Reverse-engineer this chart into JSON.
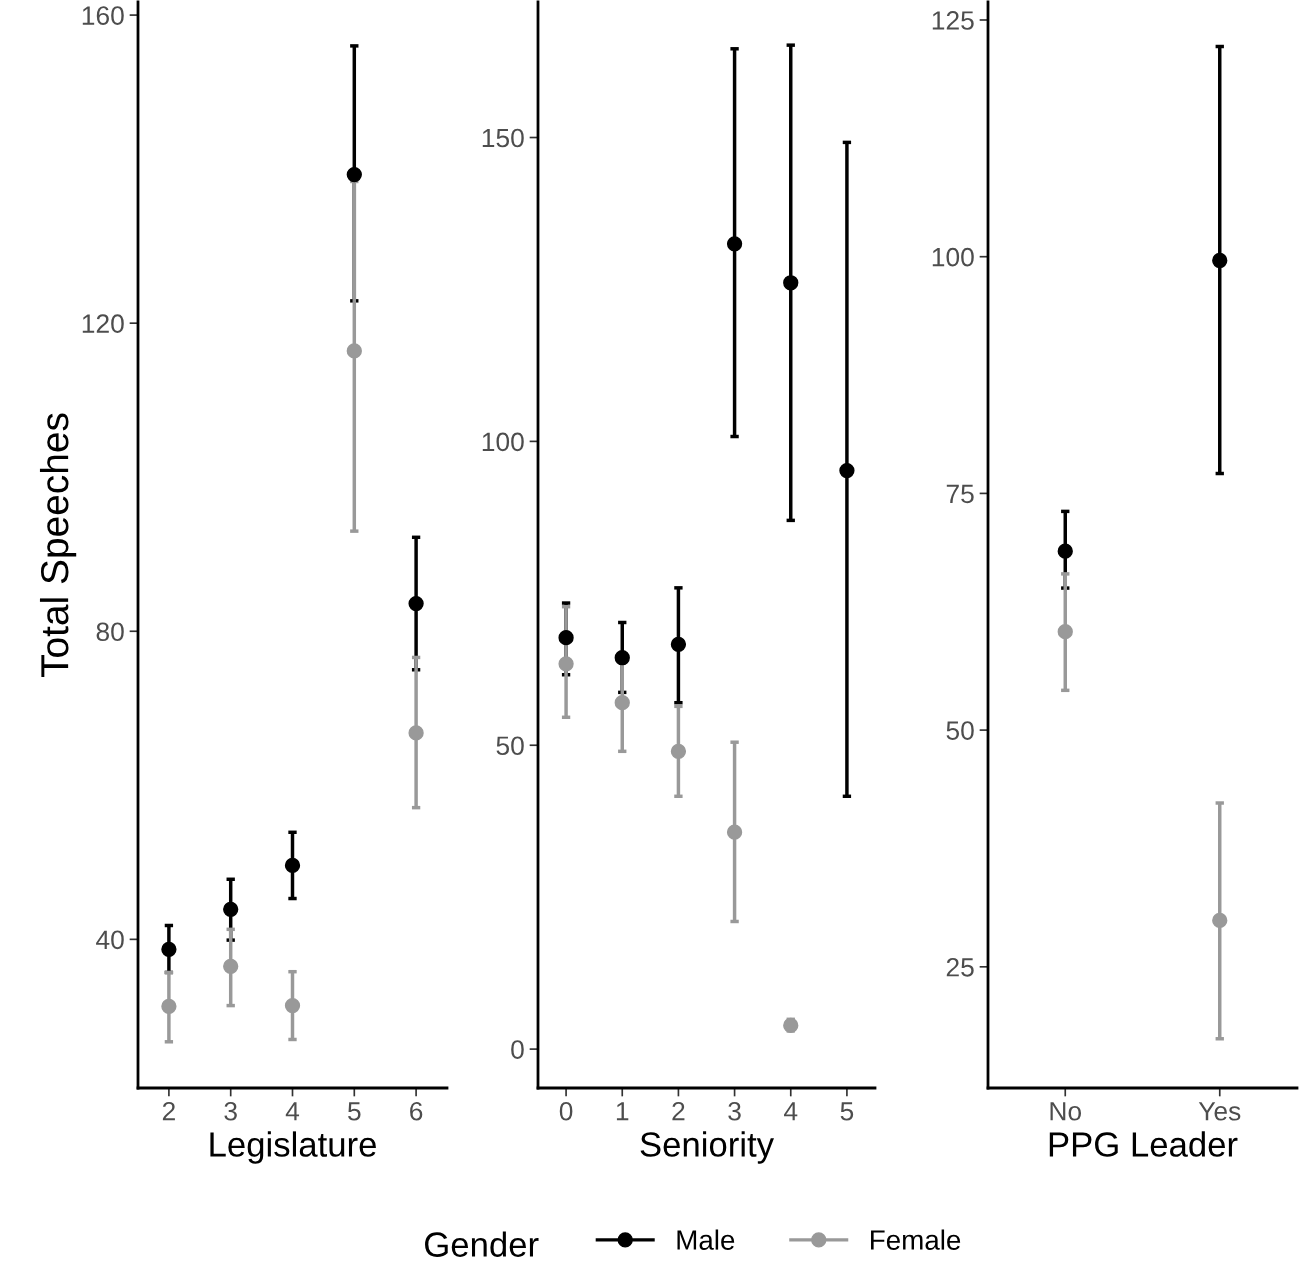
{
  "chart_data": [
    {
      "type": "scatter",
      "xlabel": "Legislature",
      "ylabel": "Total Speeches",
      "categories": [
        "2",
        "3",
        "4",
        "5",
        "6"
      ],
      "ylim": [
        20.7,
        161.7
      ],
      "yticks": [
        40,
        80,
        120,
        160
      ],
      "grid": false,
      "marker": "circle",
      "legend": "bottom",
      "legend_title": "Gender",
      "series": [
        {
          "name": "Male",
          "color": "#000000",
          "values": [
            38.7,
            43.9,
            49.6,
            139.3,
            83.6
          ],
          "errors": [
            [
              35.7,
              41.8
            ],
            [
              39.9,
              47.8
            ],
            [
              45.3,
              53.9
            ],
            [
              122.9,
              156.0
            ],
            [
              75.0,
              92.2
            ]
          ]
        },
        {
          "name": "Female",
          "color": "#999999",
          "values": [
            31.3,
            36.5,
            31.4,
            116.4,
            66.8
          ],
          "errors": [
            [
              26.7,
              35.7
            ],
            [
              31.4,
              41.3
            ],
            [
              27.0,
              35.8
            ],
            [
              93.0,
              138.4
            ],
            [
              57.1,
              76.6
            ]
          ]
        }
      ]
    },
    {
      "type": "scatter",
      "xlabel": "Seniority",
      "categories": [
        "0",
        "1",
        "2",
        "3",
        "4",
        "5"
      ],
      "ylim": [
        -6.4,
        172.3
      ],
      "yticks": [
        0,
        50,
        100,
        150
      ],
      "grid": false,
      "marker": "circle",
      "series": [
        {
          "name": "Male",
          "color": "#000000",
          "values": [
            67.7,
            64.4,
            66.6,
            132.5,
            126.1,
            95.2
          ],
          "errors": [
            [
              61.6,
              73.4
            ],
            [
              58.7,
              70.2
            ],
            [
              57.0,
              75.9
            ],
            [
              100.8,
              164.6
            ],
            [
              87.0,
              165.2
            ],
            [
              41.6,
              149.2
            ]
          ]
        },
        {
          "name": "Female",
          "color": "#999999",
          "values": [
            63.4,
            57.0,
            49.0,
            35.7,
            3.9,
            null
          ],
          "errors": [
            [
              54.6,
              72.8
            ],
            [
              49.0,
              63.8
            ],
            [
              41.6,
              56.4
            ],
            [
              21.0,
              50.5
            ],
            [
              3.0,
              4.9
            ],
            null
          ]
        }
      ]
    },
    {
      "type": "scatter",
      "xlabel": "PPG Leader",
      "categories": [
        "No",
        "Yes"
      ],
      "ylim": [
        12.2,
        126.9
      ],
      "yticks": [
        25,
        50,
        75,
        100,
        125
      ],
      "grid": false,
      "marker": "circle",
      "series": [
        {
          "name": "Male",
          "color": "#000000",
          "values": [
            68.9,
            99.6
          ],
          "errors": [
            [
              65.0,
              73.1
            ],
            [
              77.1,
              122.2
            ]
          ]
        },
        {
          "name": "Female",
          "color": "#999999",
          "values": [
            60.4,
            29.9
          ],
          "errors": [
            [
              54.2,
              66.5
            ],
            [
              17.4,
              42.3
            ]
          ]
        }
      ]
    }
  ]
}
